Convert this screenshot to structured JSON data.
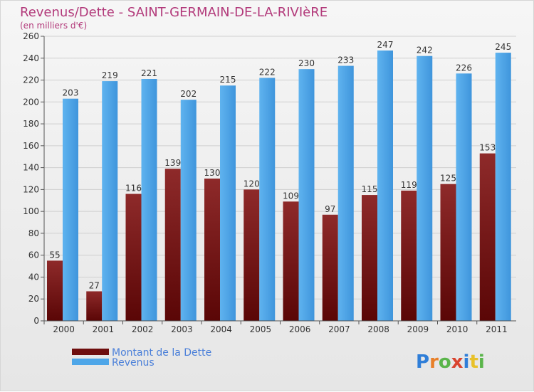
{
  "chart_data": {
    "type": "bar",
    "title": "Revenus/Dette - SAINT-GERMAIN-DE-LA-RIVIèRE",
    "subtitle": "(en milliers d'€)",
    "categories": [
      "2000",
      "2001",
      "2002",
      "2003",
      "2004",
      "2005",
      "2006",
      "2007",
      "2008",
      "2009",
      "2010",
      "2011"
    ],
    "series": [
      {
        "name": "Montant de la Dette",
        "color": "#7a1a1a",
        "values": [
          55,
          27,
          116,
          139,
          130,
          120,
          109,
          97,
          115,
          119,
          125,
          153
        ]
      },
      {
        "name": "Revenus",
        "color": "#4ea6e8",
        "values": [
          203,
          219,
          221,
          202,
          215,
          222,
          230,
          233,
          247,
          242,
          226,
          245
        ]
      }
    ],
    "ylim": [
      0,
      260
    ],
    "yticks": [
      0,
      20,
      40,
      60,
      80,
      100,
      120,
      140,
      160,
      180,
      200,
      220,
      240,
      260
    ],
    "grid": true,
    "legend": "bottom-left"
  },
  "watermark": "Proxiti"
}
